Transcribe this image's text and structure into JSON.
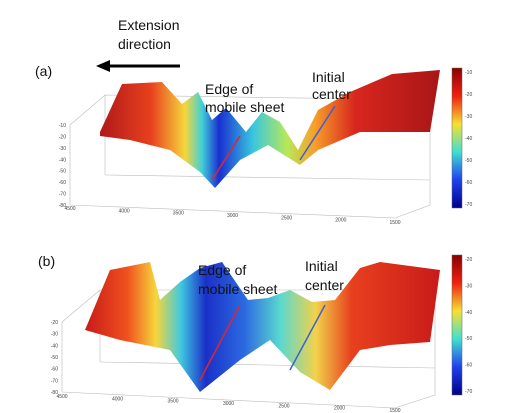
{
  "extension_label": [
    "Extension",
    "direction"
  ],
  "panels": [
    {
      "label": "(a)",
      "edge_label": [
        "Edge of",
        "mobile sheet"
      ],
      "center_label": [
        "Initial",
        "center"
      ],
      "x_ticks": [
        "4500",
        "4000",
        "3500",
        "3000",
        "2500",
        "2000",
        "1500"
      ],
      "z_ticks": [
        "-10",
        "-20",
        "-30",
        "-40",
        "-50",
        "-60",
        "-70",
        "-80"
      ],
      "colorbar_ticks": [
        "-10",
        "-20",
        "-30",
        "-40",
        "-50",
        "-60",
        "-70"
      ]
    },
    {
      "label": "(b)",
      "edge_label": [
        "Edge of",
        "mobile sheet"
      ],
      "center_label": [
        "Initial",
        "center"
      ],
      "x_ticks": [
        "4500",
        "4000",
        "3500",
        "3000",
        "2500",
        "2000",
        "1500"
      ],
      "z_ticks": [
        "-20",
        "-30",
        "-40",
        "-50",
        "-60",
        "-70",
        "-80"
      ],
      "colorbar_ticks": [
        "-20",
        "-30",
        "-40",
        "-50",
        "-60",
        "-70"
      ]
    }
  ]
}
